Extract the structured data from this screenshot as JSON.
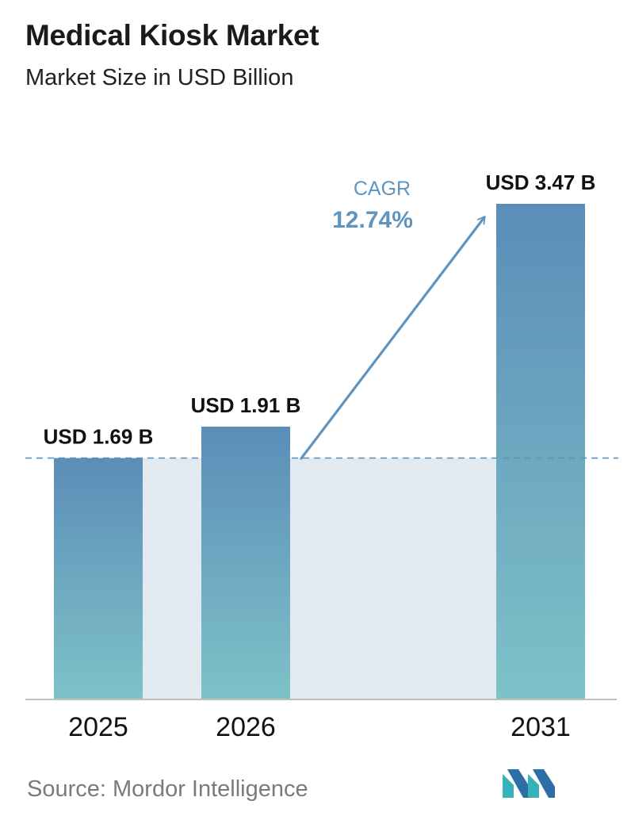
{
  "header": {
    "title": "Medical Kiosk Market",
    "subtitle": "Market Size in USD Billion"
  },
  "chart_data": {
    "type": "bar",
    "categories": [
      "2025",
      "2026",
      "2031"
    ],
    "values": [
      1.69,
      1.91,
      3.47
    ],
    "value_labels": [
      "USD 1.69 B",
      "USD 1.91 B",
      "USD 3.47 B"
    ],
    "title": "Medical Kiosk Market",
    "subtitle": "Market Size in USD Billion",
    "xlabel": "",
    "ylabel": "",
    "ylim": [
      0,
      3.47
    ],
    "grid": false,
    "annotation": {
      "label": "CAGR",
      "value": "12.74%"
    },
    "reference_line_value": 1.69
  },
  "footer": {
    "source": "Source:  Mordor Intelligence",
    "logo_icon": "mordor-intelligence-logo-icon"
  },
  "colors": {
    "bar_top": "#5b8db8",
    "bar_bottom": "#7ec2c8",
    "band": "#e1e9f1",
    "cagr": "#5f94bf",
    "axis": "#bfbfbf",
    "logo_dark": "#2c6ea5",
    "logo_light": "#35b3b9"
  }
}
